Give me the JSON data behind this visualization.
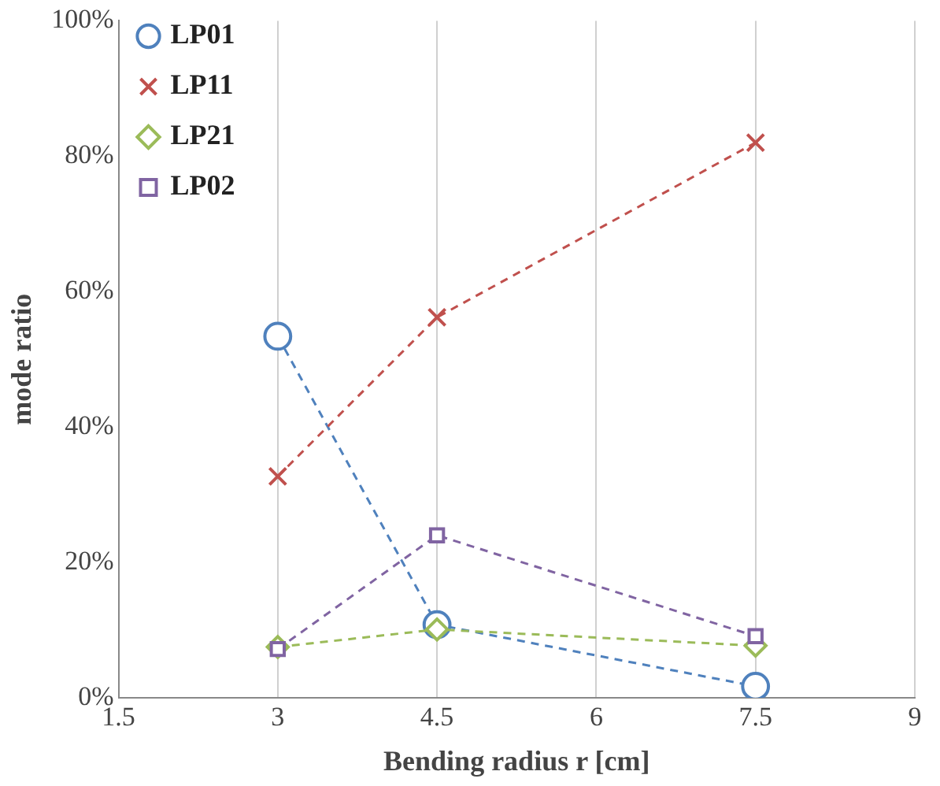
{
  "chart_data": {
    "type": "line",
    "xlabel": "Bending radius r [cm]",
    "ylabel": "mode ratio",
    "x": [
      3,
      4.5,
      7.5
    ],
    "series": [
      {
        "name": "LP01",
        "color": "#4f81bd",
        "marker": "circle",
        "values": [
          53.4,
          10.8,
          1.7
        ]
      },
      {
        "name": "LP11",
        "color": "#c0504d",
        "marker": "cross",
        "values": [
          32.7,
          56.2,
          82
        ]
      },
      {
        "name": "LP21",
        "color": "#9bbb59",
        "marker": "diamond",
        "values": [
          7.5,
          10.1,
          7.7
        ]
      },
      {
        "name": "LP02",
        "color": "#8064a2",
        "marker": "square",
        "values": [
          7.2,
          24,
          9.1
        ]
      }
    ],
    "xlim": [
      1.5,
      9
    ],
    "xticks": [
      1.5,
      3,
      4.5,
      6,
      7.5,
      9
    ],
    "ylim": [
      0,
      100
    ],
    "yticks": [
      {
        "value": 0,
        "label": "0%"
      },
      {
        "value": 20,
        "label": "20%"
      },
      {
        "value": 40,
        "label": "40%"
      },
      {
        "value": 60,
        "label": "60%"
      },
      {
        "value": 80,
        "label": "80%"
      },
      {
        "value": 100,
        "label": "100%"
      }
    ],
    "grid": "x",
    "legend": "top left",
    "line_style": "dashed"
  }
}
